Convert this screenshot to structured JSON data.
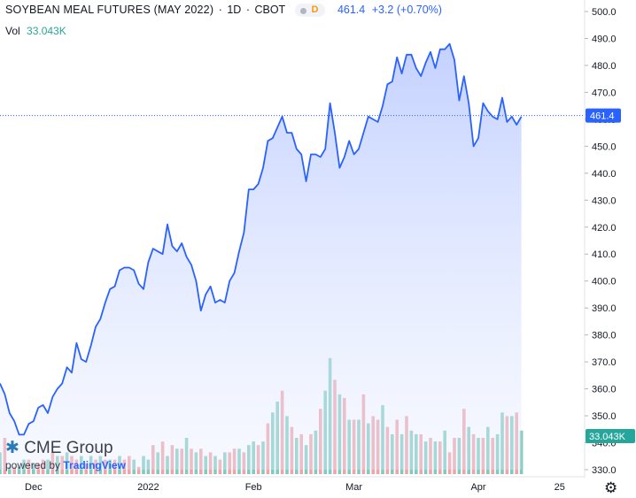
{
  "header": {
    "symbol": "SOYBEAN MEAL FUTURES (MAY 2022)",
    "interval": "1D",
    "exchange": "CBOT",
    "badge": "D",
    "last": "461.4",
    "change": "+3.2 (+0.70%)"
  },
  "volume": {
    "label": "Vol",
    "value": "33.043K"
  },
  "branding": {
    "cme": "CME Group",
    "powered": "powered by",
    "tv": "TradingView"
  },
  "icons": {
    "settings": "gear-icon"
  },
  "colors": {
    "line": "#2962ff",
    "area": "#dbe4ff",
    "vol_up": "#7fcbbf",
    "vol_down": "#f0a3a8",
    "last_tag": "#2962ff",
    "vol_tag": "#26a69a"
  },
  "chart_data": {
    "type": "area",
    "ylim": [
      330,
      500
    ],
    "y_ticks": [
      "500.0",
      "490.0",
      "480.0",
      "470.0",
      "460.0",
      "450.0",
      "440.0",
      "430.0",
      "420.0",
      "410.0",
      "400.0",
      "390.0",
      "380.0",
      "370.0",
      "360.0",
      "350.0",
      "340.0",
      "330.0"
    ],
    "x_ticks": [
      "Dec",
      "2022",
      "Feb",
      "Mar",
      "Apr",
      "25"
    ],
    "last_value": 461.4,
    "last_label": "461.4",
    "volume_label": "33.043K",
    "series": [
      {
        "values": [
          362,
          358,
          351,
          348,
          343,
          343,
          347,
          348,
          353,
          354,
          351,
          357,
          360,
          362,
          368,
          366,
          377,
          371,
          370,
          376,
          383,
          386,
          392,
          397,
          398,
          404,
          405,
          405,
          404,
          399,
          397,
          407,
          412,
          411,
          410,
          421,
          413,
          411,
          414,
          409,
          406,
          400,
          389,
          395,
          398,
          392,
          393,
          392,
          400,
          403,
          411,
          418,
          434,
          434,
          436,
          442,
          452,
          453,
          457,
          461,
          455,
          455,
          449,
          447,
          437,
          447,
          447,
          446,
          449,
          466,
          455,
          442,
          446,
          452,
          447,
          449,
          455,
          461,
          460,
          459,
          465,
          473,
          474,
          483,
          477,
          484,
          484,
          479,
          476,
          481,
          485,
          479,
          486,
          486,
          488,
          482,
          467,
          476,
          466,
          450,
          453,
          466,
          463,
          461,
          460,
          468,
          459,
          461,
          458,
          461
        ]
      },
      {
        "name": "volume",
        "values": [
          6,
          10,
          2,
          2,
          2,
          4,
          4,
          3,
          3,
          4,
          4,
          6,
          5,
          5,
          6,
          5,
          4,
          5,
          3,
          5,
          4,
          5,
          4,
          4,
          4,
          5,
          4,
          5,
          4,
          2,
          5,
          4,
          8,
          6,
          9,
          5,
          8,
          7,
          7,
          10,
          7,
          6,
          7,
          5,
          6,
          5,
          4,
          6,
          6,
          7,
          7,
          6,
          8,
          9,
          8,
          9,
          14,
          17,
          20,
          23,
          16,
          13,
          10,
          11,
          8,
          11,
          12,
          18,
          23,
          32,
          26,
          22,
          21,
          15,
          15,
          15,
          22,
          14,
          16,
          15,
          19,
          13,
          11,
          15,
          11,
          16,
          12,
          11,
          11,
          9,
          10,
          9,
          9,
          12,
          6,
          10,
          10,
          18,
          13,
          11,
          10,
          10,
          13,
          10,
          11,
          17,
          16,
          16,
          17,
          12
        ],
        "up": [
          1,
          0,
          1,
          0,
          1,
          1,
          0,
          1,
          0,
          0,
          1,
          0,
          1,
          0,
          1,
          0,
          0,
          1,
          0,
          1,
          0,
          1,
          0,
          1,
          0,
          1,
          0,
          0,
          1,
          0,
          1,
          1,
          0,
          1,
          0,
          1,
          0,
          1,
          0,
          1,
          0,
          1,
          0,
          1,
          0,
          1,
          0,
          1,
          0,
          0,
          1,
          0,
          1,
          1,
          0,
          1,
          0,
          1,
          1,
          0,
          1,
          0,
          1,
          0,
          1,
          0,
          1,
          0,
          1,
          1,
          0,
          1,
          0,
          1,
          0,
          1,
          0,
          1,
          0,
          0,
          1,
          0,
          1,
          0,
          1,
          0,
          1,
          1,
          0,
          1,
          0,
          1,
          0,
          1,
          0,
          0,
          1,
          0,
          1,
          0,
          1,
          0,
          1,
          0,
          1,
          1,
          0,
          1,
          0,
          1
        ]
      }
    ]
  }
}
